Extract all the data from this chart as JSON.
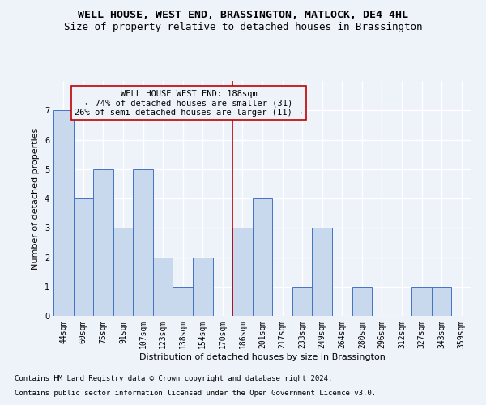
{
  "title": "WELL HOUSE, WEST END, BRASSINGTON, MATLOCK, DE4 4HL",
  "subtitle": "Size of property relative to detached houses in Brassington",
  "xlabel": "Distribution of detached houses by size in Brassington",
  "ylabel": "Number of detached properties",
  "categories": [
    "44sqm",
    "60sqm",
    "75sqm",
    "91sqm",
    "107sqm",
    "123sqm",
    "138sqm",
    "154sqm",
    "170sqm",
    "186sqm",
    "201sqm",
    "217sqm",
    "233sqm",
    "249sqm",
    "264sqm",
    "280sqm",
    "296sqm",
    "312sqm",
    "327sqm",
    "343sqm",
    "359sqm"
  ],
  "values": [
    7,
    4,
    5,
    3,
    5,
    2,
    1,
    2,
    0,
    3,
    4,
    0,
    1,
    3,
    0,
    1,
    0,
    0,
    1,
    1,
    0
  ],
  "bar_color": "#c8d9ee",
  "bar_edge_color": "#4472c4",
  "highlight_line_idx": 9,
  "highlight_line_color": "#c00000",
  "ylim": [
    0,
    8
  ],
  "yticks": [
    0,
    1,
    2,
    3,
    4,
    5,
    6,
    7
  ],
  "annotation_title": "WELL HOUSE WEST END: 188sqm",
  "annotation_line1": "← 74% of detached houses are smaller (31)",
  "annotation_line2": "26% of semi-detached houses are larger (11) →",
  "annotation_box_color": "#c00000",
  "footnote1": "Contains HM Land Registry data © Crown copyright and database right 2024.",
  "footnote2": "Contains public sector information licensed under the Open Government Licence v3.0.",
  "background_color": "#eef2f9",
  "grid_color": "#ffffff",
  "title_fontsize": 9.5,
  "subtitle_fontsize": 9,
  "axis_label_fontsize": 8,
  "tick_fontsize": 7,
  "annotation_fontsize": 7.5,
  "footnote_fontsize": 6.5
}
